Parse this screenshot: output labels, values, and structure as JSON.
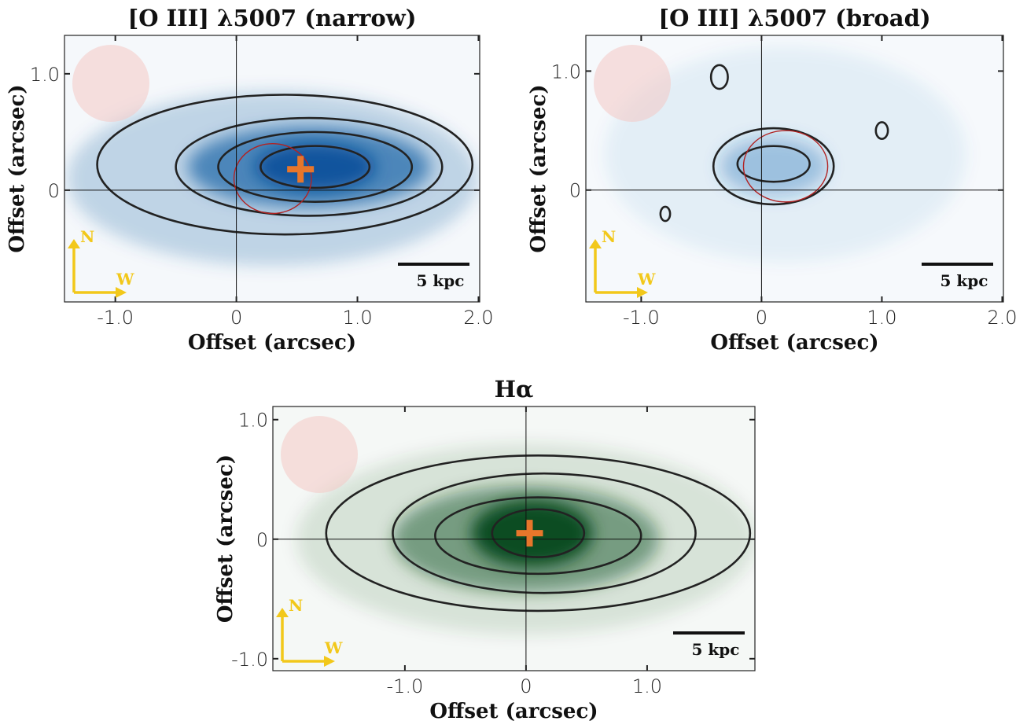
{
  "chart_data": [
    {
      "type": "image",
      "title": "[O III] λ5007 (narrow)",
      "x_label": "Offset (arcsec)",
      "y_label": "Offset (arcsec)",
      "color": "#08519c",
      "xlim": [
        -1.42,
        2.01
      ],
      "ylim": [
        -0.96,
        1.33
      ],
      "xticks": [
        {
          "value": -1,
          "label": "-1.0"
        },
        0,
        {
          "value": 1,
          "label": "1.0"
        },
        {
          "value": 2,
          "label": "2.0"
        }
      ],
      "yticks": [
        0,
        {
          "value": 1,
          "label": "1.0"
        }
      ],
      "scale_bar": "5 kpc",
      "compass": [
        "N",
        "W"
      ],
      "crosshair": true
    },
    {
      "type": "image",
      "title": "[O III] λ5007 (broad)",
      "x_label": "Offset (arcsec)",
      "y_label": "Offset (arcsec)",
      "color": "#2171b5",
      "xlim": [
        -1.46,
        2.01
      ],
      "ylim": [
        -0.94,
        1.3
      ],
      "xticks": [
        {
          "value": -1,
          "label": "-1.0"
        },
        0,
        {
          "value": 1,
          "label": "1.0"
        },
        {
          "value": 2,
          "label": "2.0"
        }
      ],
      "yticks": [
        0,
        {
          "value": 1,
          "label": "1.0"
        }
      ],
      "scale_bar": "5 kpc",
      "compass": [
        "N",
        "W"
      ],
      "crosshair": true
    },
    {
      "type": "image",
      "title": "Hα",
      "x_label": "Offset (arcsec)",
      "y_label": "Offset (arcsec)",
      "color": "#00441b",
      "xlim": [
        -2.09,
        1.89
      ],
      "ylim": [
        -1.1,
        1.11
      ],
      "xticks": [
        {
          "value": -1,
          "label": "-1.0"
        },
        0,
        {
          "value": 1,
          "label": "1.0"
        }
      ],
      "yticks": [
        {
          "value": -1,
          "label": "-1.0"
        },
        0,
        {
          "value": 1,
          "label": "1.0"
        }
      ],
      "scale_bar": "5 kpc",
      "compass": [
        "N",
        "W"
      ],
      "crosshair": true
    }
  ]
}
